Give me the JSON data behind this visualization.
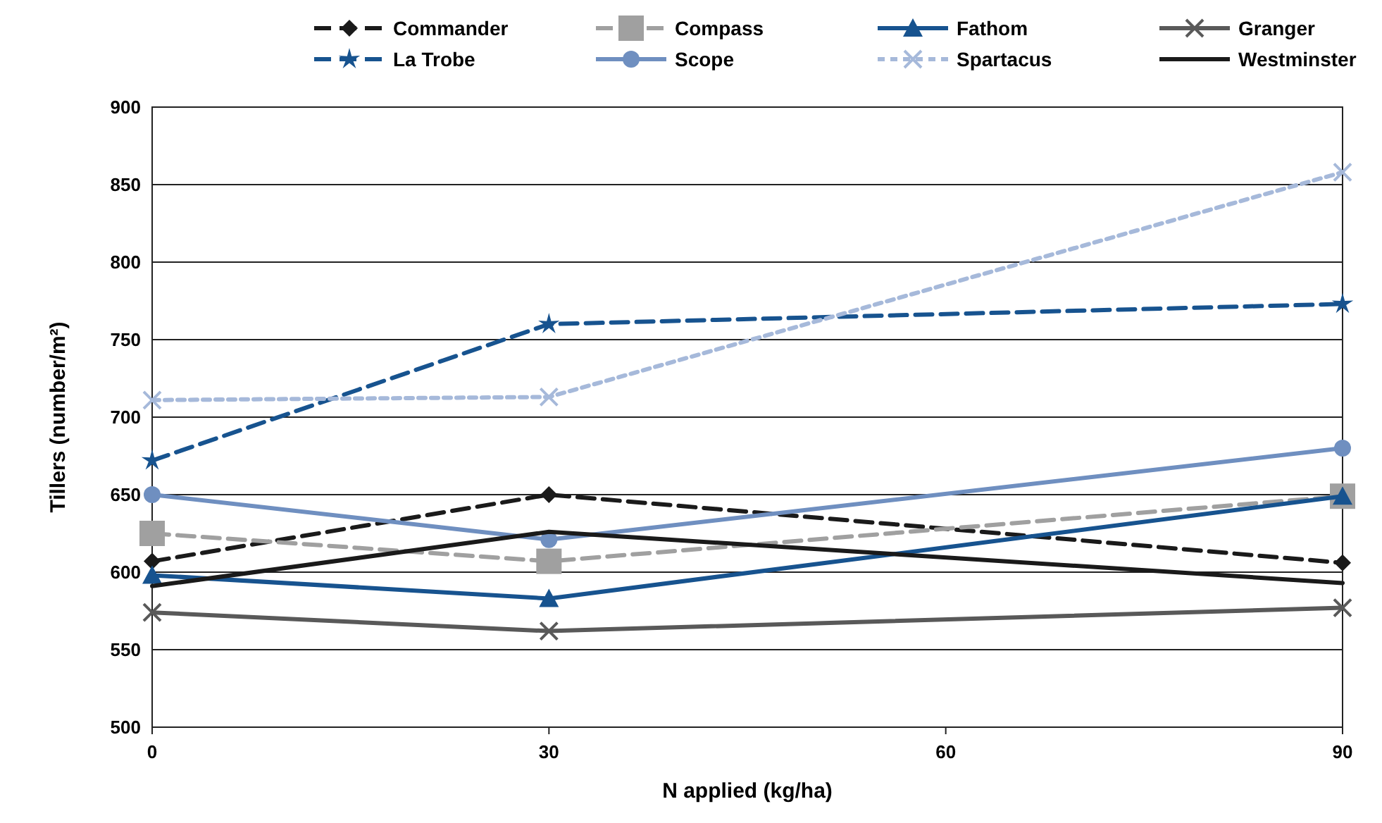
{
  "chart_data": {
    "type": "line",
    "xlabel": "N applied (kg/ha)",
    "ylabel": "Tillers (number/m²)",
    "x": [
      0,
      30,
      90
    ],
    "xlim": [
      0,
      90
    ],
    "xticks": [
      0,
      30,
      60,
      90
    ],
    "ylim": [
      500,
      900
    ],
    "yticks": [
      500,
      550,
      600,
      650,
      700,
      750,
      800,
      850,
      900
    ],
    "grid": "y",
    "legend": "top",
    "series": [
      {
        "name": "Commander",
        "color": "#1a1a1a",
        "values": [
          607,
          650,
          606
        ],
        "marker": "diamond",
        "line_style": "dashed"
      },
      {
        "name": "Compass",
        "color": "#a0a0a0",
        "values": [
          625,
          607,
          649
        ],
        "marker": "square",
        "line_style": "dashed"
      },
      {
        "name": "Fathom",
        "color": "#17538f",
        "values": [
          598,
          583,
          649
        ],
        "marker": "triangle",
        "line_style": "solid"
      },
      {
        "name": "Granger",
        "color": "#595959",
        "values": [
          574,
          562,
          577
        ],
        "marker": "cross",
        "line_style": "solid"
      },
      {
        "name": "La Trobe",
        "color": "#17538f",
        "values": [
          672,
          760,
          773
        ],
        "marker": "star",
        "line_style": "dashed"
      },
      {
        "name": "Scope",
        "color": "#6f8fc0",
        "values": [
          650,
          621,
          680
        ],
        "marker": "circle",
        "line_style": "solid"
      },
      {
        "name": "Spartacus",
        "color": "#a6b9da",
        "values": [
          711,
          713,
          858
        ],
        "marker": "cross",
        "line_style": "dotted"
      },
      {
        "name": "Westminster",
        "color": "#1a1a1a",
        "values": [
          591,
          626,
          593
        ],
        "marker": "none",
        "line_style": "solid"
      }
    ]
  }
}
